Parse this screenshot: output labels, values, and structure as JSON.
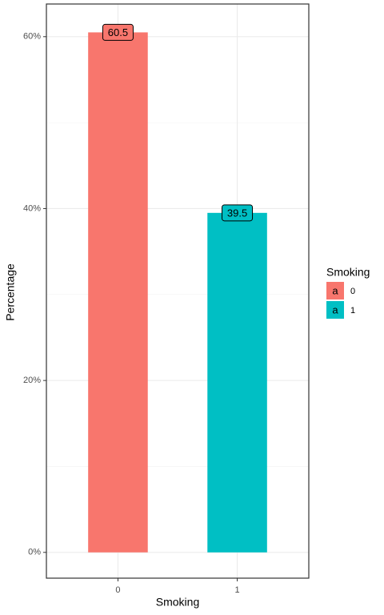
{
  "chart_data": {
    "type": "bar",
    "categories": [
      "0",
      "1"
    ],
    "series": [
      {
        "name": "Percentage",
        "values": [
          60.5,
          39.5
        ]
      }
    ],
    "colors": [
      "#F8766D",
      "#00BFC4"
    ],
    "xlabel": "Smoking",
    "ylabel": "Percentage",
    "legend_title": "Smoking",
    "legend_glyph": "a",
    "legend_position": "right",
    "ylim": [
      -3.0,
      63.8
    ],
    "yticks": [
      {
        "value": 0,
        "label": "0%"
      },
      {
        "value": 20,
        "label": "20%"
      },
      {
        "value": 40,
        "label": "40%"
      },
      {
        "value": 60,
        "label": "60%"
      }
    ],
    "yminor": [
      10,
      30,
      50
    ],
    "grid": true
  }
}
